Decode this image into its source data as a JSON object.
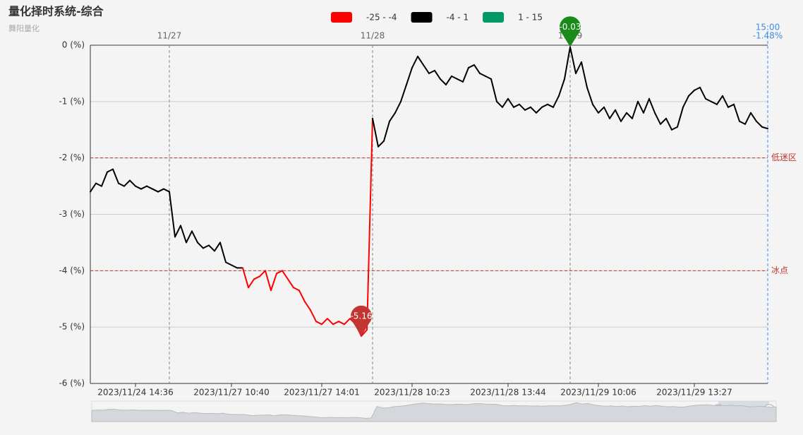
{
  "chart_data": {
    "type": "line",
    "title": "量化择时系统-综合",
    "subtitle": "舞阳量化",
    "categories": [
      null,
      null,
      null,
      null,
      null,
      null,
      null,
      null,
      "2023/11/24 14:36",
      null,
      null,
      null,
      null,
      null,
      null,
      null,
      null,
      null,
      null,
      null,
      null,
      null,
      null,
      null,
      null,
      "2023/11/27 10:40",
      null,
      null,
      null,
      null,
      null,
      null,
      null,
      null,
      null,
      null,
      null,
      null,
      null,
      null,
      null,
      "2023/11/27 14:01",
      null,
      null,
      null,
      null,
      null,
      null,
      null,
      null,
      null,
      null,
      null,
      null,
      null,
      null,
      null,
      "2023/11/28 10:23",
      null,
      null,
      null,
      null,
      null,
      null,
      null,
      null,
      null,
      null,
      null,
      null,
      null,
      null,
      null,
      null,
      "2023/11/28 13:44",
      null,
      null,
      null,
      null,
      null,
      null,
      null,
      null,
      null,
      null,
      null,
      null,
      null,
      null,
      null,
      "2023/11/29 10:06",
      null,
      null,
      null,
      null,
      null,
      null,
      null,
      null,
      null,
      null,
      null,
      null,
      null,
      null,
      null,
      null,
      "2023/11/29 13:27",
      null,
      null,
      null,
      null,
      null,
      null,
      null,
      null,
      null,
      null,
      null,
      null,
      null
    ],
    "series": [
      {
        "values": [
          -2.6,
          -2.45,
          -2.5,
          -2.25,
          -2.2,
          -2.45,
          -2.5,
          -2.4,
          -2.5,
          -2.55,
          -2.5,
          -2.55,
          -2.6,
          -2.55,
          -2.6,
          -3.4,
          -3.2,
          -3.5,
          -3.3,
          -3.5,
          -3.6,
          -3.55,
          -3.65,
          -3.5,
          -3.85,
          -3.9,
          -3.95,
          -3.95,
          -4.3,
          -4.15,
          -4.1,
          -4.0,
          -4.35,
          -4.05,
          -4.0,
          -4.15,
          -4.3,
          -4.35,
          -4.55,
          -4.7,
          -4.9,
          -4.95,
          -4.85,
          -4.95,
          -4.9,
          -4.95,
          -4.85,
          -4.95,
          -5.16,
          -5.05,
          -1.3,
          -1.8,
          -1.7,
          -1.35,
          -1.2,
          -1.0,
          -0.7,
          -0.4,
          -0.2,
          -0.35,
          -0.5,
          -0.45,
          -0.6,
          -0.7,
          -0.55,
          -0.6,
          -0.65,
          -0.4,
          -0.35,
          -0.5,
          -0.55,
          -0.6,
          -1.0,
          -1.1,
          -0.95,
          -1.1,
          -1.05,
          -1.15,
          -1.1,
          -1.2,
          -1.1,
          -1.05,
          -1.1,
          -0.9,
          -0.6,
          -0.03,
          -0.5,
          -0.3,
          -0.75,
          -1.05,
          -1.2,
          -1.1,
          -1.3,
          -1.15,
          -1.35,
          -1.2,
          -1.3,
          -1.0,
          -1.2,
          -0.95,
          -1.2,
          -1.4,
          -1.3,
          -1.5,
          -1.45,
          -1.1,
          -0.9,
          -0.8,
          -0.75,
          -0.95,
          -1.0,
          -1.05,
          -0.9,
          -1.1,
          -1.05,
          -1.35,
          -1.4,
          -1.2,
          -1.35,
          -1.45,
          -1.48
        ]
      }
    ],
    "pieces": [
      {
        "min": -25,
        "max": -4,
        "label": "-25 - -4",
        "color": "#ff0000"
      },
      {
        "min": -4,
        "max": 1,
        "label": "-4 - 1",
        "color": "#000000"
      },
      {
        "min": 1,
        "max": 15,
        "label": "1 - 15",
        "color": "#009966"
      }
    ],
    "ylim": [
      -6,
      0
    ],
    "yticks": [
      {
        "value": 0,
        "label": "0 (%)"
      },
      {
        "value": -1,
        "label": "-1 (%)"
      },
      {
        "value": -2,
        "label": "-2 (%)"
      },
      {
        "value": -3,
        "label": "-3 (%)"
      },
      {
        "value": -4,
        "label": "-4 (%)"
      },
      {
        "value": -5,
        "label": "-5 (%)"
      },
      {
        "value": -6,
        "label": "-6 (%)"
      }
    ],
    "grid": true,
    "mark_lines": [
      {
        "value": -2,
        "label": "低迷区"
      },
      {
        "value": -4,
        "label": "冰点"
      }
    ],
    "day_lines": [
      {
        "index": 14,
        "label": "11/27"
      },
      {
        "index": 50,
        "label": "11/28"
      },
      {
        "index": 85,
        "label": "11/29"
      }
    ],
    "end_time": "15:00",
    "end_label": "-1.48%"
  }
}
